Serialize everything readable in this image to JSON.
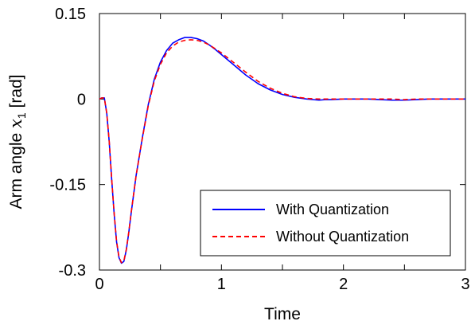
{
  "chart_data": {
    "type": "line",
    "title": "",
    "xlabel": "Time",
    "ylabel_text": "Arm angle ",
    "ylabel_var": "x",
    "ylabel_sub": "1",
    "ylabel_unit": " [rad]",
    "xlim": [
      0,
      3
    ],
    "ylim": [
      -0.3,
      0.15
    ],
    "x_ticks": [
      {
        "value": 0,
        "label": "0"
      },
      {
        "value": 1,
        "label": "1"
      },
      {
        "value": 2,
        "label": "2"
      },
      {
        "value": 3,
        "label": "3"
      }
    ],
    "x_minor_ticks": [
      0.5,
      1.5,
      2.5
    ],
    "y_ticks": [
      {
        "value": 0.15,
        "label": "0.15"
      },
      {
        "value": 0,
        "label": "0"
      },
      {
        "value": -0.15,
        "label": "-0.15"
      },
      {
        "value": -0.3,
        "label": "-0.3"
      }
    ],
    "grid": false,
    "legend_position": "bottom-right",
    "series": [
      {
        "name": "With Quantization",
        "color": "#0000ff",
        "style": "solid",
        "x": [
          0,
          0.02,
          0.04,
          0.06,
          0.08,
          0.1,
          0.12,
          0.14,
          0.16,
          0.18,
          0.2,
          0.22,
          0.24,
          0.26,
          0.3,
          0.35,
          0.4,
          0.45,
          0.5,
          0.55,
          0.6,
          0.65,
          0.7,
          0.75,
          0.8,
          0.85,
          0.9,
          0.95,
          1.0,
          1.1,
          1.2,
          1.3,
          1.4,
          1.5,
          1.6,
          1.7,
          1.8,
          1.85,
          1.9,
          2.0,
          2.1,
          2.2,
          2.3,
          2.4,
          2.5,
          2.6,
          2.7,
          2.8,
          2.9,
          3.0
        ],
        "y": [
          0,
          0.002,
          0.002,
          -0.025,
          -0.075,
          -0.14,
          -0.2,
          -0.25,
          -0.278,
          -0.288,
          -0.285,
          -0.265,
          -0.235,
          -0.2,
          -0.135,
          -0.07,
          -0.01,
          0.035,
          0.065,
          0.085,
          0.098,
          0.104,
          0.108,
          0.108,
          0.106,
          0.102,
          0.095,
          0.087,
          0.078,
          0.06,
          0.042,
          0.027,
          0.016,
          0.008,
          0.003,
          0.0,
          -0.002,
          -0.001,
          -0.001,
          0.0,
          0.0,
          0.0,
          -0.001,
          -0.002,
          -0.002,
          -0.001,
          0.0,
          0.0,
          0.0,
          0.0
        ]
      },
      {
        "name": "Without Quantization",
        "color": "#ff0000",
        "style": "dashed",
        "x": [
          0,
          0.02,
          0.04,
          0.06,
          0.08,
          0.1,
          0.12,
          0.14,
          0.16,
          0.18,
          0.2,
          0.22,
          0.24,
          0.26,
          0.3,
          0.35,
          0.4,
          0.45,
          0.5,
          0.55,
          0.6,
          0.65,
          0.7,
          0.75,
          0.8,
          0.85,
          0.9,
          0.95,
          1.0,
          1.1,
          1.2,
          1.3,
          1.4,
          1.5,
          1.6,
          1.7,
          1.8,
          1.85,
          1.9,
          2.0,
          2.1,
          2.2,
          2.3,
          2.4,
          2.5,
          2.6,
          2.7,
          2.8,
          2.9,
          3.0
        ],
        "y": [
          0,
          0.002,
          0.002,
          -0.025,
          -0.074,
          -0.139,
          -0.199,
          -0.249,
          -0.277,
          -0.287,
          -0.284,
          -0.264,
          -0.234,
          -0.199,
          -0.135,
          -0.071,
          -0.012,
          0.032,
          0.061,
          0.081,
          0.093,
          0.1,
          0.103,
          0.104,
          0.103,
          0.1,
          0.095,
          0.088,
          0.081,
          0.064,
          0.047,
          0.031,
          0.019,
          0.01,
          0.004,
          0.001,
          0.0,
          0.0,
          0.0,
          0.0,
          0.0,
          0.0,
          0.0,
          0.0,
          -0.001,
          0.0,
          0.0,
          0.0,
          0.0,
          0.0
        ]
      }
    ]
  }
}
